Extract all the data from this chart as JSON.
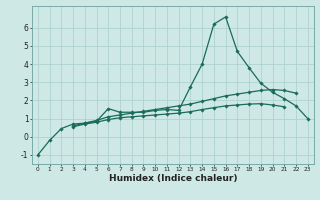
{
  "x": [
    0,
    1,
    2,
    3,
    4,
    5,
    6,
    7,
    8,
    9,
    10,
    11,
    12,
    13,
    14,
    15,
    16,
    17,
    18,
    19,
    20,
    21,
    22,
    23
  ],
  "line1": [
    -1.0,
    -0.2,
    0.45,
    0.7,
    0.75,
    0.85,
    1.55,
    1.35,
    1.35,
    1.35,
    1.45,
    1.5,
    1.45,
    2.75,
    4.0,
    6.2,
    6.6,
    4.7,
    3.8,
    2.95,
    2.45,
    2.1,
    1.7,
    1.0
  ],
  "line2": [
    null,
    null,
    null,
    0.6,
    0.75,
    0.9,
    1.1,
    1.2,
    1.3,
    1.4,
    1.5,
    1.6,
    1.7,
    1.8,
    1.95,
    2.1,
    2.25,
    2.35,
    2.45,
    2.55,
    2.6,
    2.55,
    2.4,
    null
  ],
  "line3": [
    null,
    null,
    null,
    0.55,
    0.7,
    0.8,
    0.95,
    1.05,
    1.1,
    1.15,
    1.2,
    1.25,
    1.3,
    1.38,
    1.5,
    1.6,
    1.7,
    1.75,
    1.8,
    1.82,
    1.75,
    1.65,
    null,
    null
  ],
  "bg_color": "#cde8e5",
  "line_color": "#1a6b5a",
  "grid_color": "#aacfcc",
  "xlabel": "Humidex (Indice chaleur)",
  "xlabel_fontsize": 6.5,
  "ylim": [
    -1.5,
    7.2
  ],
  "xlim": [
    -0.5,
    23.5
  ],
  "yticks": [
    -1,
    0,
    1,
    2,
    3,
    4,
    5,
    6
  ],
  "xticks": [
    0,
    1,
    2,
    3,
    4,
    5,
    6,
    7,
    8,
    9,
    10,
    11,
    12,
    13,
    14,
    15,
    16,
    17,
    18,
    19,
    20,
    21,
    22,
    23
  ],
  "marker": "D",
  "marker_size": 1.8,
  "linewidth": 0.9
}
